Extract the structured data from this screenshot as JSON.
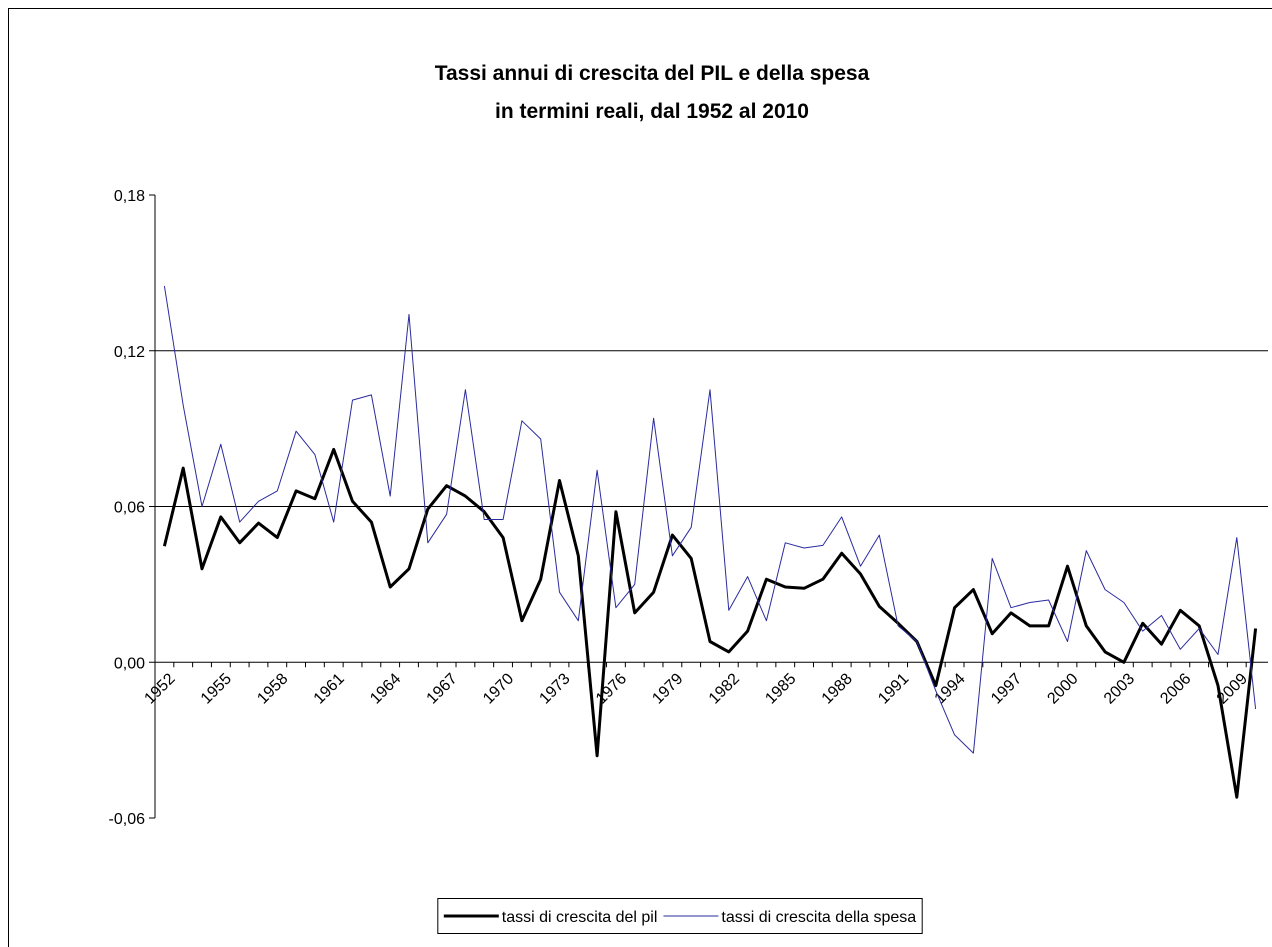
{
  "chart_data": {
    "type": "line",
    "title": [
      "Tassi annui di crescita del PIL e della spesa",
      "in termini reali, dal 1952 al 2010"
    ],
    "categories": [
      "1952",
      null,
      null,
      "1955",
      null,
      null,
      "1958",
      null,
      null,
      "1961",
      null,
      null,
      "1964",
      null,
      null,
      "1967",
      null,
      null,
      "1970",
      null,
      null,
      "1973",
      null,
      null,
      "1976",
      null,
      null,
      "1979",
      null,
      null,
      "1982",
      null,
      null,
      "1985",
      null,
      null,
      "1988",
      null,
      null,
      "1991",
      null,
      null,
      "1994",
      null,
      null,
      "1997",
      null,
      null,
      "2000",
      null,
      null,
      "2003",
      null,
      null,
      "2006",
      null,
      null,
      "2009",
      null
    ],
    "series": [
      {
        "name": "tassi di crescita del pil",
        "color": "#000000",
        "width": 3,
        "values": [
          0.0447,
          0.0748,
          0.036,
          0.056,
          0.046,
          0.0536,
          0.048,
          0.066,
          0.063,
          0.082,
          0.062,
          0.054,
          0.029,
          0.036,
          0.059,
          0.068,
          0.064,
          0.058,
          0.048,
          0.016,
          0.032,
          0.07,
          0.041,
          -0.036,
          0.058,
          0.019,
          0.027,
          0.049,
          0.04,
          0.008,
          0.004,
          0.012,
          0.032,
          0.029,
          0.0285,
          0.032,
          0.042,
          0.034,
          0.0215,
          0.015,
          0.008,
          -0.009,
          0.021,
          0.028,
          0.011,
          0.019,
          0.014,
          0.014,
          0.037,
          0.014,
          0.004,
          0.0,
          0.015,
          0.007,
          0.02,
          0.014,
          -0.009,
          -0.052,
          0.013
        ]
      },
      {
        "name": "tassi di crescita della spesa",
        "color": "#2b2b9e",
        "width": 1,
        "values": [
          0.145,
          0.099,
          0.06,
          0.084,
          0.054,
          0.062,
          0.066,
          0.089,
          0.08,
          0.054,
          0.101,
          0.103,
          0.064,
          0.134,
          0.046,
          0.057,
          0.105,
          0.055,
          0.055,
          0.093,
          0.086,
          0.027,
          0.016,
          0.074,
          0.021,
          0.03,
          0.094,
          0.041,
          0.052,
          0.105,
          0.02,
          0.033,
          0.016,
          0.046,
          0.044,
          0.045,
          0.056,
          0.037,
          0.049,
          0.014,
          0.008,
          -0.011,
          -0.028,
          -0.035,
          0.04,
          0.021,
          0.023,
          0.024,
          0.008,
          0.043,
          0.028,
          0.023,
          0.012,
          0.018,
          0.005,
          0.013,
          0.003,
          0.048,
          -0.018
        ]
      }
    ],
    "ylim": [
      -0.06,
      0.18
    ],
    "yticks": [
      {
        "value": -0.06,
        "label": "-0,06"
      },
      {
        "value": 0,
        "label": "0,00"
      },
      {
        "value": 0.06,
        "label": "0,06"
      },
      {
        "value": 0.12,
        "label": "0,12"
      },
      {
        "value": 0.18,
        "label": "0,18"
      }
    ],
    "grid": true
  }
}
